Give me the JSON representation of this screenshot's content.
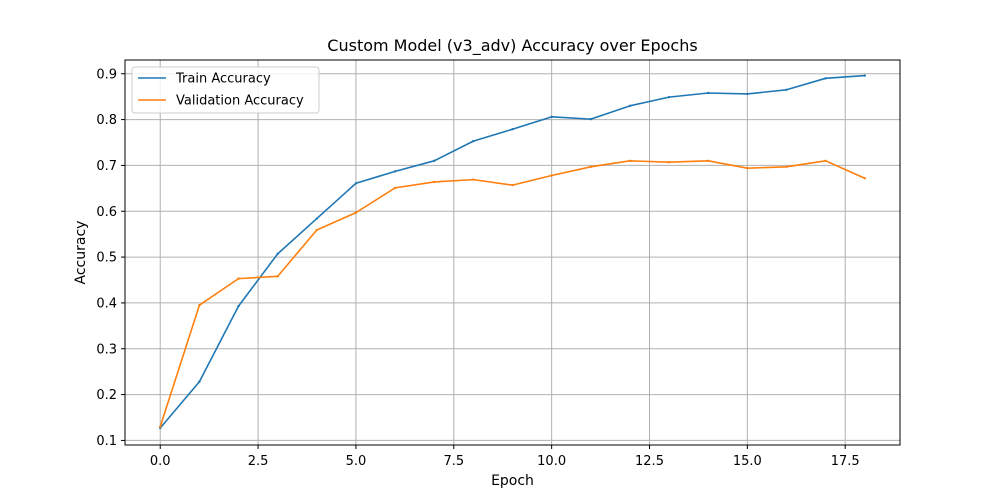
{
  "chart_data": {
    "type": "line",
    "title": "Custom Model (v3_adv) Accuracy over Epochs",
    "xlabel": "Epoch",
    "ylabel": "Accuracy",
    "xlim": [
      -0.9,
      18.9
    ],
    "ylim": [
      0.09,
      0.93
    ],
    "xticks": [
      0.0,
      2.5,
      5.0,
      7.5,
      10.0,
      12.5,
      15.0,
      17.5
    ],
    "xtick_labels": [
      "0.0",
      "2.5",
      "5.0",
      "7.5",
      "10.0",
      "12.5",
      "15.0",
      "17.5"
    ],
    "yticks": [
      0.1,
      0.2,
      0.3,
      0.4,
      0.5,
      0.6,
      0.7,
      0.8,
      0.9
    ],
    "ytick_labels": [
      "0.1",
      "0.2",
      "0.3",
      "0.4",
      "0.5",
      "0.6",
      "0.7",
      "0.8",
      "0.9"
    ],
    "grid": true,
    "legend_position": "top-left",
    "x": [
      0,
      1,
      2,
      3,
      4,
      5,
      6,
      7,
      8,
      9,
      10,
      11,
      12,
      13,
      14,
      15,
      16,
      17,
      18
    ],
    "series": [
      {
        "name": "Train Accuracy",
        "color": "#1f77b4",
        "values": [
          0.127,
          0.228,
          0.393,
          0.507,
          0.584,
          0.661,
          0.687,
          0.71,
          0.753,
          0.779,
          0.806,
          0.801,
          0.83,
          0.849,
          0.858,
          0.856,
          0.865,
          0.89,
          0.896
        ]
      },
      {
        "name": "Validation Accuracy",
        "color": "#ff7f0e",
        "values": [
          0.13,
          0.395,
          0.453,
          0.458,
          0.559,
          0.597,
          0.651,
          0.664,
          0.669,
          0.657,
          0.678,
          0.697,
          0.71,
          0.707,
          0.71,
          0.694,
          0.697,
          0.71,
          0.672
        ]
      }
    ]
  }
}
